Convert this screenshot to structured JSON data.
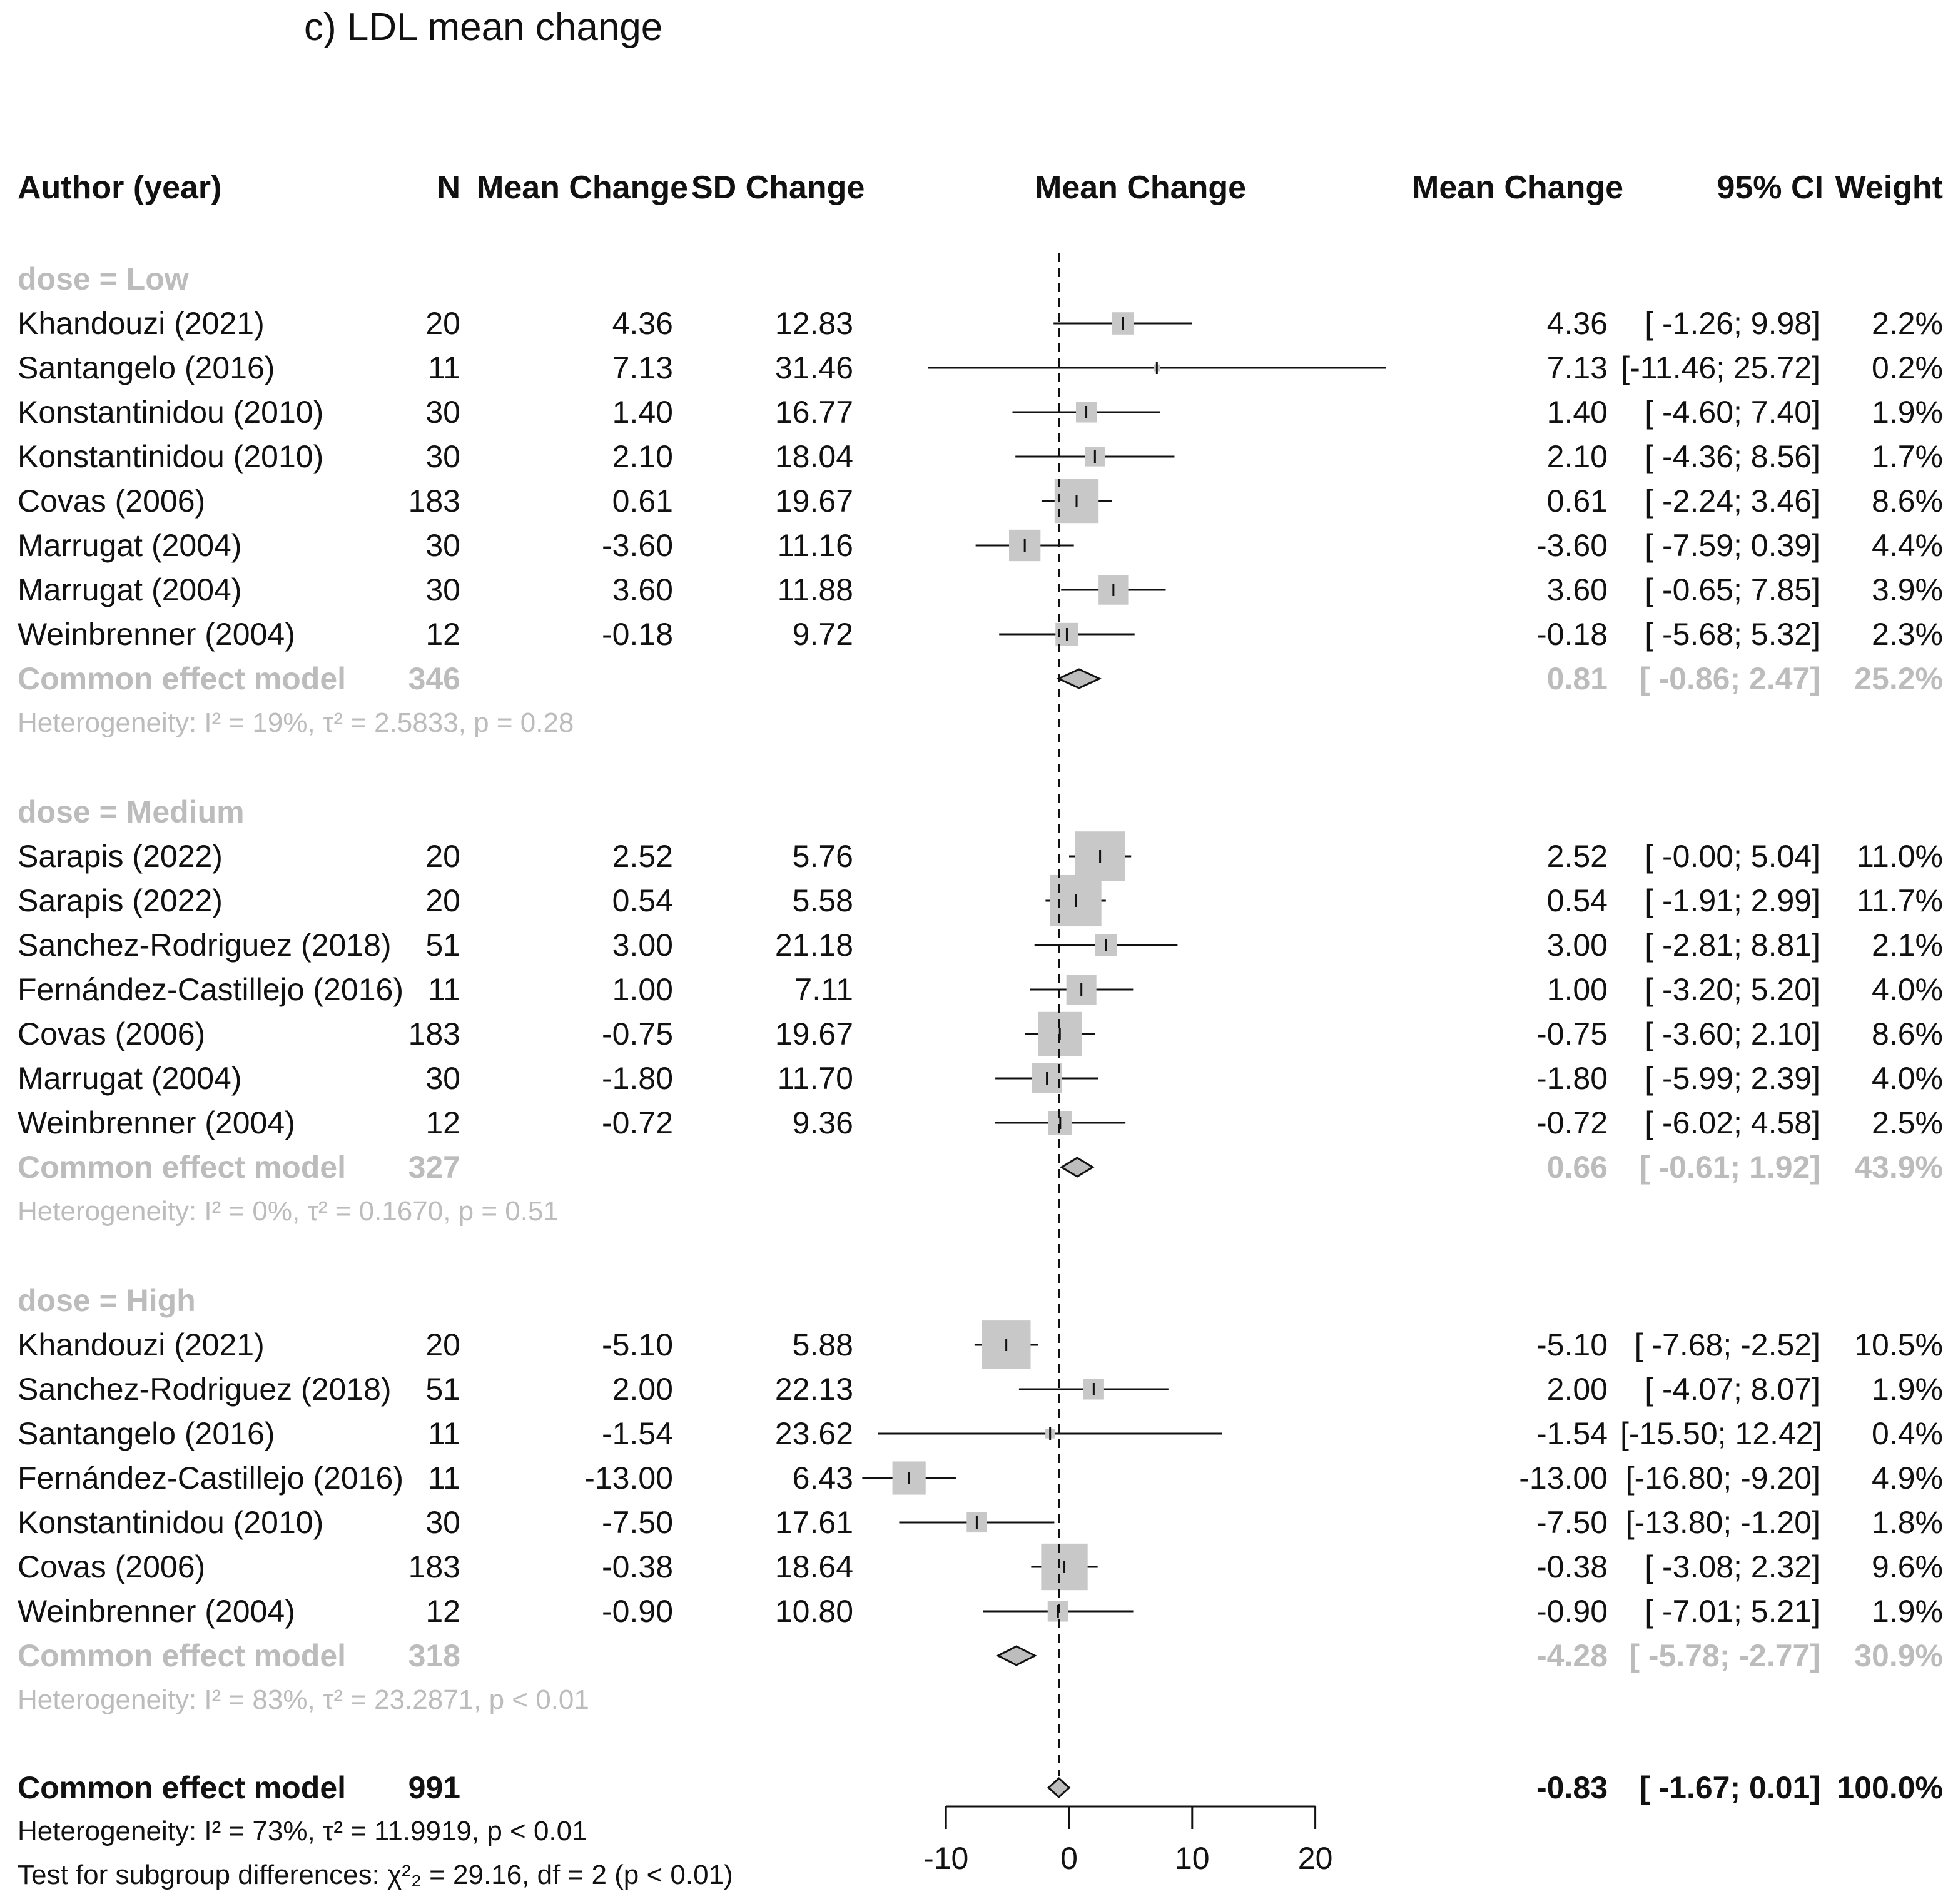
{
  "title": "c) LDL mean change",
  "headers": {
    "author": "Author (year)",
    "n": "N",
    "mean_change": "Mean Change",
    "sd_change": "SD Change",
    "plot": "Mean Change",
    "effect": "Mean Change",
    "ci": "95% CI",
    "weight": "Weight"
  },
  "groups": [
    {
      "label": "dose = Low",
      "studies": [
        {
          "author": "Khandouzi (2021)",
          "n": "20",
          "mean": "4.36",
          "sd": "12.83",
          "est": 4.36,
          "lo": -1.26,
          "hi": 9.98,
          "effect": "4.36",
          "ci": "[ -1.26;  9.98]",
          "weight": "2.2%",
          "w": 2.2
        },
        {
          "author": "Santangelo (2016)",
          "n": "11",
          "mean": "7.13",
          "sd": "31.46",
          "est": 7.13,
          "lo": -11.46,
          "hi": 25.72,
          "effect": "7.13",
          "ci": "[-11.46; 25.72]",
          "weight": "0.2%",
          "w": 0.2
        },
        {
          "author": "Konstantinidou (2010)",
          "n": "30",
          "mean": "1.40",
          "sd": "16.77",
          "est": 1.4,
          "lo": -4.6,
          "hi": 7.4,
          "effect": "1.40",
          "ci": "[ -4.60;  7.40]",
          "weight": "1.9%",
          "w": 1.9
        },
        {
          "author": "Konstantinidou (2010)",
          "n": "30",
          "mean": "2.10",
          "sd": "18.04",
          "est": 2.1,
          "lo": -4.36,
          "hi": 8.56,
          "effect": "2.10",
          "ci": "[ -4.36;  8.56]",
          "weight": "1.7%",
          "w": 1.7
        },
        {
          "author": "Covas (2006)",
          "n": "183",
          "mean": "0.61",
          "sd": "19.67",
          "est": 0.61,
          "lo": -2.24,
          "hi": 3.46,
          "effect": "0.61",
          "ci": "[ -2.24;  3.46]",
          "weight": "8.6%",
          "w": 8.6
        },
        {
          "author": "Marrugat (2004)",
          "n": "30",
          "mean": "-3.60",
          "sd": "11.16",
          "est": -3.6,
          "lo": -7.59,
          "hi": 0.39,
          "effect": "-3.60",
          "ci": "[ -7.59;  0.39]",
          "weight": "4.4%",
          "w": 4.4
        },
        {
          "author": "Marrugat (2004)",
          "n": "30",
          "mean": "3.60",
          "sd": "11.88",
          "est": 3.6,
          "lo": -0.65,
          "hi": 7.85,
          "effect": "3.60",
          "ci": "[ -0.65;  7.85]",
          "weight": "3.9%",
          "w": 3.9
        },
        {
          "author": "Weinbrenner (2004)",
          "n": "12",
          "mean": "-0.18",
          "sd": "9.72",
          "est": -0.18,
          "lo": -5.68,
          "hi": 5.32,
          "effect": "-0.18",
          "ci": "[ -5.68;  5.32]",
          "weight": "2.3%",
          "w": 2.3
        }
      ],
      "pooled": {
        "label": "Common effect model",
        "n": "346",
        "est": 0.81,
        "lo": -0.86,
        "hi": 2.47,
        "effect": "0.81",
        "ci": "[ -0.86;  2.47]",
        "weight": "25.2%"
      },
      "het": "Heterogeneity: I² = 19%, τ² = 2.5833, p = 0.28"
    },
    {
      "label": "dose = Medium",
      "studies": [
        {
          "author": "Sarapis (2022)",
          "n": "20",
          "mean": "2.52",
          "sd": "5.76",
          "est": 2.52,
          "lo": -0.0,
          "hi": 5.04,
          "effect": "2.52",
          "ci": "[ -0.00;  5.04]",
          "weight": "11.0%",
          "w": 11.0
        },
        {
          "author": "Sarapis (2022)",
          "n": "20",
          "mean": "0.54",
          "sd": "5.58",
          "est": 0.54,
          "lo": -1.91,
          "hi": 2.99,
          "effect": "0.54",
          "ci": "[ -1.91;  2.99]",
          "weight": "11.7%",
          "w": 11.7
        },
        {
          "author": "Sanchez-Rodriguez (2018)",
          "n": "51",
          "mean": "3.00",
          "sd": "21.18",
          "est": 3.0,
          "lo": -2.81,
          "hi": 8.81,
          "effect": "3.00",
          "ci": "[ -2.81;  8.81]",
          "weight": "2.1%",
          "w": 2.1
        },
        {
          "author": "Fernández-Castillejo (2016)",
          "n": "11",
          "mean": "1.00",
          "sd": "7.11",
          "est": 1.0,
          "lo": -3.2,
          "hi": 5.2,
          "effect": "1.00",
          "ci": "[ -3.20;  5.20]",
          "weight": "4.0%",
          "w": 4.0
        },
        {
          "author": "Covas (2006)",
          "n": "183",
          "mean": "-0.75",
          "sd": "19.67",
          "est": -0.75,
          "lo": -3.6,
          "hi": 2.1,
          "effect": "-0.75",
          "ci": "[ -3.60;  2.10]",
          "weight": "8.6%",
          "w": 8.6
        },
        {
          "author": "Marrugat (2004)",
          "n": "30",
          "mean": "-1.80",
          "sd": "11.70",
          "est": -1.8,
          "lo": -5.99,
          "hi": 2.39,
          "effect": "-1.80",
          "ci": "[ -5.99;  2.39]",
          "weight": "4.0%",
          "w": 4.0
        },
        {
          "author": "Weinbrenner (2004)",
          "n": "12",
          "mean": "-0.72",
          "sd": "9.36",
          "est": -0.72,
          "lo": -6.02,
          "hi": 4.58,
          "effect": "-0.72",
          "ci": "[ -6.02;  4.58]",
          "weight": "2.5%",
          "w": 2.5
        }
      ],
      "pooled": {
        "label": "Common effect model",
        "n": "327",
        "est": 0.66,
        "lo": -0.61,
        "hi": 1.92,
        "effect": "0.66",
        "ci": "[ -0.61;  1.92]",
        "weight": "43.9%"
      },
      "het": "Heterogeneity: I² = 0%, τ² = 0.1670, p = 0.51"
    },
    {
      "label": "dose = High",
      "studies": [
        {
          "author": "Khandouzi (2021)",
          "n": "20",
          "mean": "-5.10",
          "sd": "5.88",
          "est": -5.1,
          "lo": -7.68,
          "hi": -2.52,
          "effect": "-5.10",
          "ci": "[ -7.68; -2.52]",
          "weight": "10.5%",
          "w": 10.5
        },
        {
          "author": "Sanchez-Rodriguez (2018)",
          "n": "51",
          "mean": "2.00",
          "sd": "22.13",
          "est": 2.0,
          "lo": -4.07,
          "hi": 8.07,
          "effect": "2.00",
          "ci": "[ -4.07;  8.07]",
          "weight": "1.9%",
          "w": 1.9
        },
        {
          "author": "Santangelo (2016)",
          "n": "11",
          "mean": "-1.54",
          "sd": "23.62",
          "est": -1.54,
          "lo": -15.5,
          "hi": 12.42,
          "effect": "-1.54",
          "ci": "[-15.50; 12.42]",
          "weight": "0.4%",
          "w": 0.4
        },
        {
          "author": "Fernández-Castillejo (2016)",
          "n": "11",
          "mean": "-13.00",
          "sd": "6.43",
          "est": -13.0,
          "lo": -16.8,
          "hi": -9.2,
          "effect": "-13.00",
          "ci": "[-16.80; -9.20]",
          "weight": "4.9%",
          "w": 4.9
        },
        {
          "author": "Konstantinidou (2010)",
          "n": "30",
          "mean": "-7.50",
          "sd": "17.61",
          "est": -7.5,
          "lo": -13.8,
          "hi": -1.2,
          "effect": "-7.50",
          "ci": "[-13.80; -1.20]",
          "weight": "1.8%",
          "w": 1.8
        },
        {
          "author": "Covas (2006)",
          "n": "183",
          "mean": "-0.38",
          "sd": "18.64",
          "est": -0.38,
          "lo": -3.08,
          "hi": 2.32,
          "effect": "-0.38",
          "ci": "[ -3.08;  2.32]",
          "weight": "9.6%",
          "w": 9.6
        },
        {
          "author": "Weinbrenner (2004)",
          "n": "12",
          "mean": "-0.90",
          "sd": "10.80",
          "est": -0.9,
          "lo": -7.01,
          "hi": 5.21,
          "effect": "-0.90",
          "ci": "[ -7.01;  5.21]",
          "weight": "1.9%",
          "w": 1.9
        }
      ],
      "pooled": {
        "label": "Common effect model",
        "n": "318",
        "est": -4.28,
        "lo": -5.78,
        "hi": -2.77,
        "effect": "-4.28",
        "ci": "[ -5.78; -2.77]",
        "weight": "30.9%"
      },
      "het": "Heterogeneity: I² = 83%, τ² = 23.2871, p < 0.01"
    }
  ],
  "overall": {
    "label": "Common effect model",
    "n": "991",
    "est": -0.83,
    "lo": -1.67,
    "hi": 0.01,
    "effect": "-0.83",
    "ci": "[ -1.67;  0.01]",
    "weight": "100.0%",
    "het": "Heterogeneity: I² = 73%, τ² = 11.9919, p < 0.01",
    "subgroup_test": "Test for subgroup differences: χ²₂ = 29.16, df = 2 (p < 0.01)"
  },
  "chart_data": {
    "type": "forest",
    "title": "c) LDL mean change",
    "xlabel": "Mean Change",
    "xlim": [
      -10,
      20
    ],
    "xticks": [
      -10,
      0,
      10,
      20
    ],
    "xtick_labels": [
      "-10",
      "0",
      "10",
      "20"
    ],
    "reference_line": -0.83
  },
  "colors": {
    "text": "#111111",
    "muted": "#bcbcbc",
    "box": "#c8c8c8",
    "diamond": "#bdbdbd"
  }
}
